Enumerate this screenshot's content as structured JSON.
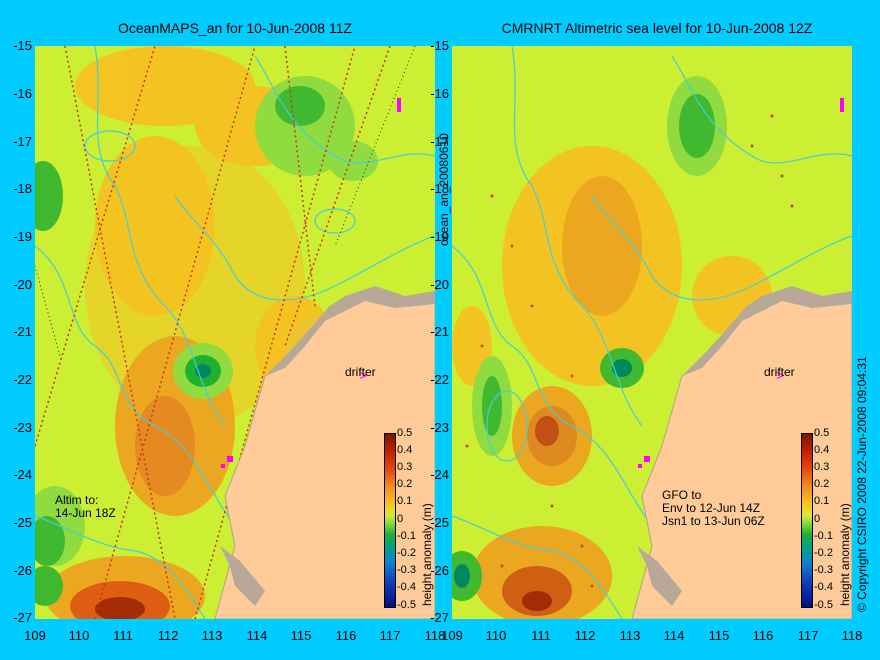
{
  "panels": {
    "left_title": "OceanMAPS_an for 10-Jun-2008 11Z",
    "right_title": "CMRNRT Altimetric sea level  for 10-Jun-2008 12Z",
    "left_annotation": [
      "Altim to:",
      "14-Jun 18Z"
    ],
    "right_annotation": [
      "GFO to",
      "Env to 12-Jun 14Z",
      "Jsn1 to 13-Jun 06Z"
    ],
    "drifter_label": "drifter"
  },
  "axes": {
    "y_ticks": [
      "-15",
      "-16",
      "-17",
      "-18",
      "-19",
      "-20",
      "-21",
      "-22",
      "-23",
      "-24",
      "-25",
      "-26",
      "-27"
    ],
    "x_ticks": [
      "109",
      "110",
      "111",
      "112",
      "113",
      "114",
      "115",
      "116",
      "117",
      "118"
    ]
  },
  "colorbar": {
    "label": "height anomaly (m)",
    "ticks": [
      "0.5",
      "0.4",
      "0.3",
      "0.2",
      "0.1",
      "0",
      "-0.1",
      "-0.2",
      "-0.3",
      "-0.4",
      "-0.5"
    ]
  },
  "side_labels": {
    "file_id": "ocean_an_20080610",
    "copyright": "© Copyright CSIRO 2008   22-Jun-2008 09:04:31"
  },
  "colors": {
    "background": "#00CCFF",
    "land": "#FFCC99",
    "drifter": "#FF00FF"
  }
}
